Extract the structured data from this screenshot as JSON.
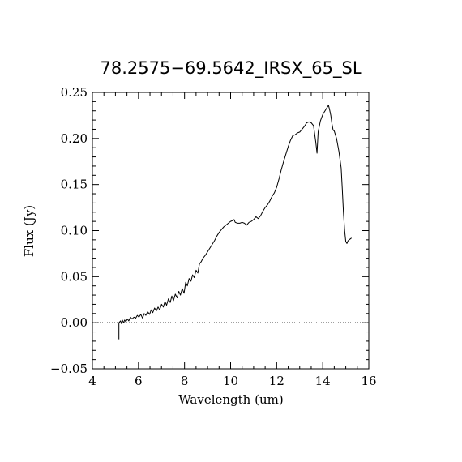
{
  "chart_data": {
    "type": "line",
    "title": "78.2575−69.5642_IRSX_65_SL",
    "xlabel": "Wavelength (um)",
    "ylabel": "Flux (Jy)",
    "xlim": [
      4,
      16
    ],
    "ylim": [
      -0.05,
      0.25
    ],
    "x_ticks": [
      "4",
      "6",
      "8",
      "10",
      "12",
      "14",
      "16"
    ],
    "y_ticks": [
      "−0.05",
      "0.00",
      "0.05",
      "0.10",
      "0.15",
      "0.20",
      "0.25"
    ],
    "grid": false,
    "reference_line": {
      "y": 0,
      "style": "dotted"
    },
    "series": [
      {
        "color": "#000000",
        "x": [
          5.15,
          5.15,
          5.22,
          5.26,
          5.3,
          5.35,
          5.4,
          5.45,
          5.52,
          5.58,
          5.65,
          5.72,
          5.8,
          5.88,
          5.95,
          6.02,
          6.1,
          6.18,
          6.25,
          6.32,
          6.4,
          6.48,
          6.55,
          6.62,
          6.7,
          6.78,
          6.85,
          6.92,
          7.0,
          7.08,
          7.15,
          7.22,
          7.3,
          7.38,
          7.45,
          7.52,
          7.6,
          7.68,
          7.75,
          7.82,
          7.9,
          7.98,
          8.05,
          8.12,
          8.2,
          8.28,
          8.35,
          8.42,
          8.5,
          8.58,
          8.65,
          8.72,
          8.8,
          8.9,
          9.0,
          9.1,
          9.2,
          9.3,
          9.4,
          9.5,
          9.6,
          9.7,
          9.8,
          9.9,
          10.0,
          10.1,
          10.15,
          10.2,
          10.3,
          10.4,
          10.5,
          10.6,
          10.7,
          10.8,
          10.9,
          11.0,
          11.1,
          11.2,
          11.3,
          11.4,
          11.5,
          11.6,
          11.7,
          11.8,
          11.9,
          12.0,
          12.1,
          12.2,
          12.3,
          12.4,
          12.5,
          12.6,
          12.7,
          12.8,
          12.9,
          13.0,
          13.1,
          13.2,
          13.3,
          13.4,
          13.5,
          13.6,
          13.7,
          13.75,
          13.8,
          13.9,
          14.0,
          14.1,
          14.2,
          14.25,
          14.3,
          14.35,
          14.4,
          14.45,
          14.5,
          14.55,
          14.6,
          14.7,
          14.8,
          14.85,
          14.9,
          14.95,
          15.0,
          15.05,
          15.1,
          15.2,
          15.25
        ],
        "y": [
          -0.018,
          0.0,
          0.002,
          -0.001,
          0.003,
          0.0,
          0.003,
          0.001,
          0.004,
          0.002,
          0.006,
          0.004,
          0.006,
          0.005,
          0.008,
          0.006,
          0.009,
          0.005,
          0.01,
          0.008,
          0.012,
          0.009,
          0.014,
          0.011,
          0.016,
          0.013,
          0.017,
          0.014,
          0.02,
          0.017,
          0.023,
          0.019,
          0.026,
          0.022,
          0.029,
          0.024,
          0.031,
          0.027,
          0.034,
          0.03,
          0.037,
          0.032,
          0.044,
          0.04,
          0.048,
          0.045,
          0.052,
          0.049,
          0.057,
          0.054,
          0.064,
          0.066,
          0.07,
          0.073,
          0.077,
          0.081,
          0.085,
          0.089,
          0.094,
          0.098,
          0.101,
          0.104,
          0.106,
          0.108,
          0.11,
          0.111,
          0.112,
          0.109,
          0.108,
          0.108,
          0.109,
          0.108,
          0.106,
          0.109,
          0.11,
          0.112,
          0.115,
          0.113,
          0.116,
          0.121,
          0.125,
          0.128,
          0.132,
          0.137,
          0.141,
          0.147,
          0.156,
          0.166,
          0.175,
          0.183,
          0.191,
          0.198,
          0.203,
          0.204,
          0.206,
          0.207,
          0.21,
          0.213,
          0.217,
          0.218,
          0.217,
          0.214,
          0.196,
          0.184,
          0.207,
          0.219,
          0.226,
          0.23,
          0.234,
          0.236,
          0.231,
          0.225,
          0.216,
          0.209,
          0.208,
          0.204,
          0.2,
          0.186,
          0.168,
          0.145,
          0.12,
          0.1,
          0.088,
          0.086,
          0.089,
          0.091,
          0.092
        ]
      }
    ]
  }
}
